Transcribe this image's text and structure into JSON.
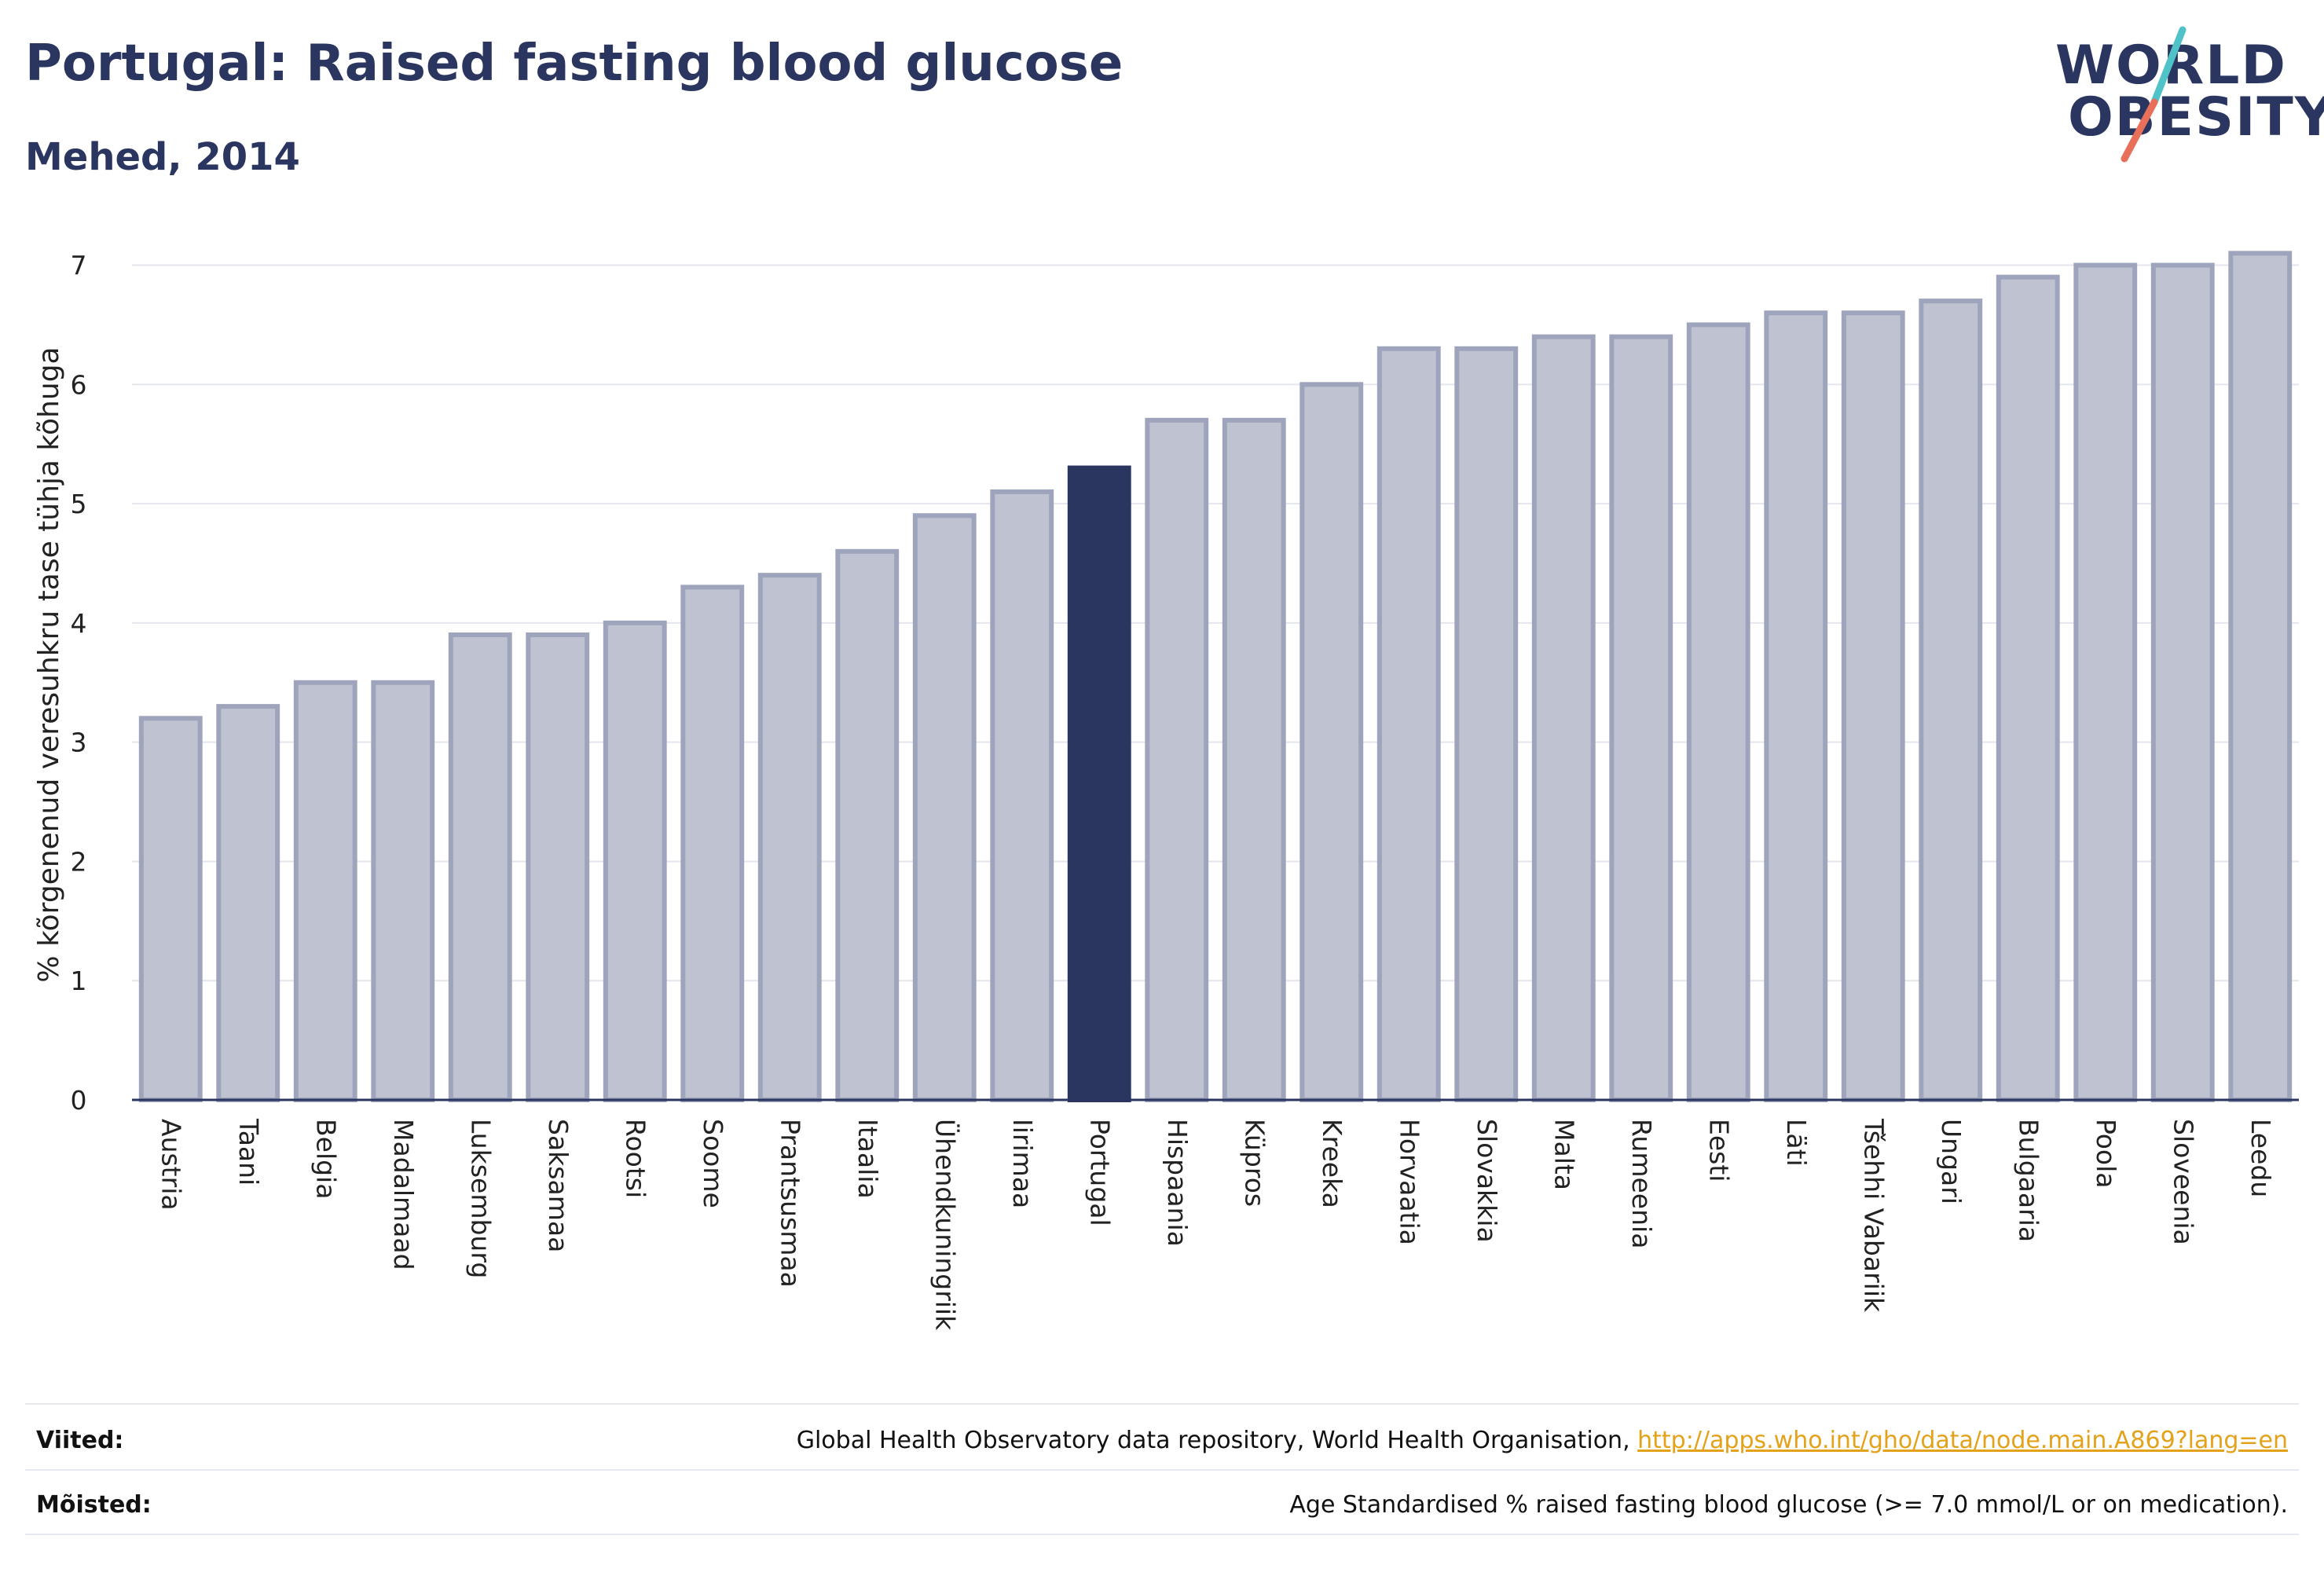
{
  "header": {
    "title": "Portugal: Raised fasting blood glucose",
    "subtitle": "Mehed, 2014"
  },
  "logo": {
    "line1": "WORLD",
    "line2": "OBESITY",
    "accent_colors": [
      "#4fc3c7",
      "#e8705a"
    ]
  },
  "chart_data": {
    "type": "bar",
    "ylabel": "% kõrgenenud veresuhkru tase tühja kõhuga",
    "xlabel": "",
    "ylim": [
      0,
      7.3
    ],
    "yticks": [
      0,
      1,
      2,
      3,
      4,
      5,
      6,
      7
    ],
    "grid": true,
    "highlight": "Portugal",
    "colors": {
      "bar": "#bfc3d1",
      "bar_border": "#9ea4bb",
      "highlight": "#2a3560"
    },
    "categories": [
      "Austria",
      "Taani",
      "Belgia",
      "Madalmaad",
      "Luksemburg",
      "Saksamaa",
      "Rootsi",
      "Soome",
      "Prantsusmaa",
      "Itaalia",
      "Ühendkuningriik",
      "Iirimaa",
      "Portugal",
      "Hispaania",
      "Küpros",
      "Kreeka",
      "Horvaatia",
      "Slovakkia",
      "Malta",
      "Rumeenia",
      "Eesti",
      "Läti",
      "Tšehhi Vabariik",
      "Ungari",
      "Bulgaaria",
      "Poola",
      "Sloveenia",
      "Leedu"
    ],
    "values": [
      3.2,
      3.3,
      3.5,
      3.5,
      3.9,
      3.9,
      4.0,
      4.3,
      4.4,
      4.6,
      4.9,
      5.1,
      5.3,
      5.7,
      5.7,
      6.0,
      6.3,
      6.3,
      6.4,
      6.4,
      6.5,
      6.6,
      6.6,
      6.7,
      6.9,
      7.0,
      7.0,
      7.1
    ]
  },
  "footer": {
    "sources_label": "Viited:",
    "sources_text": "Global Health Observatory data repository, World Health Organisation, ",
    "sources_link": "http://apps.who.int/gho/data/node.main.A869?lang=en",
    "definitions_label": "Mõisted:",
    "definitions_text": "Age Standardised % raised fasting blood glucose (>= 7.0 mmol/L or on medication)."
  }
}
